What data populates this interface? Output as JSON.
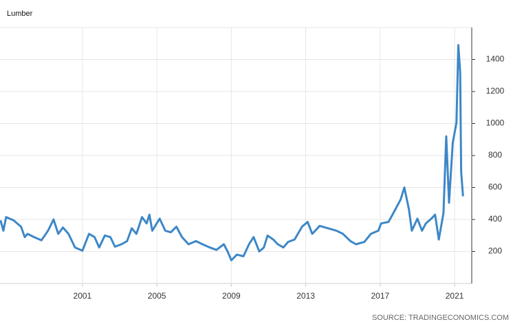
{
  "chart_data": {
    "type": "line",
    "title": "Lumber",
    "source": "SOURCE: TRADINGECONOMICS.COM",
    "x": [
      1996.6,
      1996.75,
      1996.9,
      1997.3,
      1997.7,
      1997.9,
      1998.05,
      1998.4,
      1998.8,
      1999.15,
      1999.45,
      1999.7,
      1999.95,
      2000.25,
      2000.6,
      2001.0,
      2001.35,
      2001.65,
      2001.9,
      2002.2,
      2002.5,
      2002.75,
      2003.1,
      2003.4,
      2003.65,
      2003.9,
      2004.2,
      2004.45,
      2004.6,
      2004.75,
      2005.15,
      2005.45,
      2005.75,
      2006.05,
      2006.35,
      2006.7,
      2007.1,
      2007.45,
      2007.85,
      2008.2,
      2008.6,
      2008.8,
      2009.0,
      2009.3,
      2009.65,
      2009.95,
      2010.2,
      2010.5,
      2010.75,
      2010.95,
      2011.25,
      2011.5,
      2011.8,
      2012.05,
      2012.4,
      2012.8,
      2013.1,
      2013.35,
      2013.75,
      2014.2,
      2014.65,
      2015.0,
      2015.4,
      2015.7,
      2016.15,
      2016.5,
      2016.9,
      2017.05,
      2017.45,
      2017.8,
      2018.1,
      2018.3,
      2018.55,
      2018.7,
      2019.0,
      2019.25,
      2019.45,
      2019.75,
      2019.95,
      2020.15,
      2020.4,
      2020.55,
      2020.7,
      2020.9,
      2021.1,
      2021.2,
      2021.3,
      2021.35,
      2021.45
    ],
    "series": [
      {
        "name": "Lumber",
        "color": "#3d87c7",
        "values": [
          395,
          330,
          415,
          395,
          355,
          290,
          310,
          290,
          270,
          330,
          400,
          310,
          350,
          310,
          225,
          205,
          310,
          290,
          225,
          300,
          290,
          230,
          245,
          265,
          345,
          310,
          415,
          375,
          430,
          330,
          405,
          330,
          320,
          355,
          290,
          245,
          265,
          245,
          225,
          210,
          245,
          200,
          145,
          180,
          170,
          245,
          290,
          200,
          225,
          300,
          275,
          245,
          225,
          260,
          275,
          355,
          385,
          310,
          360,
          345,
          330,
          310,
          265,
          245,
          260,
          310,
          330,
          375,
          385,
          460,
          525,
          600,
          460,
          330,
          405,
          330,
          375,
          405,
          430,
          275,
          440,
          920,
          505,
          880,
          1005,
          1490,
          1320,
          700,
          545
        ]
      }
    ],
    "xlim": [
      1996.57,
      2021.92
    ],
    "xticks": [
      2001,
      2005,
      2009,
      2013,
      2017,
      2021
    ],
    "ylim": [
      0,
      1600
    ],
    "yticks": [
      200,
      400,
      600,
      800,
      1000,
      1200,
      1400
    ],
    "grid": true
  }
}
